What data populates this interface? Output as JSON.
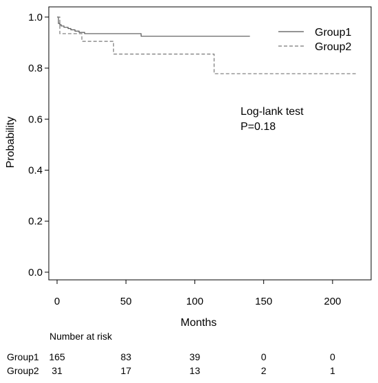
{
  "chart_data": {
    "type": "line",
    "step": true,
    "xlabel": "Months",
    "ylabel": "Probability",
    "xlim": [
      -6,
      228
    ],
    "ylim": [
      -0.03,
      1.04
    ],
    "xticks": [
      0,
      50,
      100,
      150,
      200
    ],
    "yticks": [
      0.0,
      0.2,
      0.4,
      0.6,
      0.8,
      1.0
    ],
    "ytick_labels": [
      "0.0",
      "0.2",
      "0.4",
      "0.6",
      "0.8",
      "1.0"
    ],
    "grid": false,
    "legend_position": "top-right",
    "series": [
      {
        "name": "Group1",
        "style": "solid",
        "color": "#555555",
        "points": [
          [
            0,
            1.0
          ],
          [
            1,
            0.975
          ],
          [
            2,
            0.97
          ],
          [
            3,
            0.965
          ],
          [
            5,
            0.96
          ],
          [
            8,
            0.955
          ],
          [
            10,
            0.95
          ],
          [
            13,
            0.945
          ],
          [
            16,
            0.94
          ],
          [
            20,
            0.935
          ],
          [
            61,
            0.925
          ],
          [
            140,
            0.925
          ]
        ]
      },
      {
        "name": "Group2",
        "style": "dashed",
        "color": "#777777",
        "points": [
          [
            0,
            1.0
          ],
          [
            2,
            0.935
          ],
          [
            18,
            0.905
          ],
          [
            41,
            0.855
          ],
          [
            114,
            0.778
          ],
          [
            218,
            0.778
          ]
        ]
      }
    ],
    "annotations": [
      "Log-lank test",
      "P=0.18"
    ]
  },
  "risk_table": {
    "title": "Number at risk",
    "at_months": [
      0,
      50,
      100,
      150,
      200
    ],
    "rows": [
      {
        "label": "Group1",
        "values": [
          "165",
          "83",
          "39",
          "0",
          "0"
        ]
      },
      {
        "label": "Group2",
        "values": [
          "31",
          "17",
          "13",
          "2",
          "1"
        ]
      }
    ]
  }
}
